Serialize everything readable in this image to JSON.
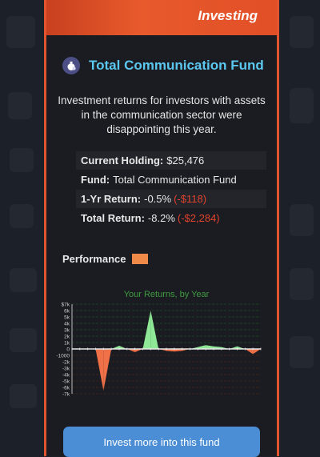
{
  "header": {
    "title": "Investing"
  },
  "fund": {
    "icon": "money-bag-icon",
    "title": "Total Communication Fund",
    "description": "Investment returns for investors with assets in the communication sector were disappointing this year."
  },
  "stats": {
    "holding_label": "Current Holding:",
    "holding_value": "$25,476",
    "fund_label": "Fund:",
    "fund_value": "Total Communication Fund",
    "one_yr_label": "1-Yr Return:",
    "one_yr_pct": "-0.5%",
    "one_yr_amount": "(-$118)",
    "total_label": "Total Return:",
    "total_pct": "-8.2%",
    "total_amount": "(-$2,284)"
  },
  "performance": {
    "label": "Performance",
    "swatch_color": "#f08a48"
  },
  "colors": {
    "accent": "#e2542d",
    "title": "#5cc8f0",
    "positive": "#8ee896",
    "negative": "#f07048",
    "button": "#4b8ed6"
  },
  "chart_data": {
    "type": "area",
    "title": "Your Returns, by Year",
    "ylim": [
      -7000,
      7000
    ],
    "y_ticks": [
      7000,
      6000,
      5000,
      4000,
      3000,
      2000,
      1000,
      0,
      -1000,
      -2000,
      -3000,
      -4000,
      -5000,
      -6000,
      -7000
    ],
    "y_tick_labels": [
      "$7k",
      "6k",
      "5k",
      "4k",
      "3k",
      "2k",
      "1k",
      "0",
      "-1000",
      "-2k",
      "-3k",
      "-4k",
      "-5k",
      "-6k",
      "-7k"
    ],
    "values": [
      0,
      0,
      0,
      0,
      -6500,
      0,
      500,
      0,
      -500,
      0,
      6000,
      0,
      -300,
      -400,
      -300,
      0,
      300,
      600,
      400,
      300,
      0,
      400,
      0,
      -800,
      0
    ]
  },
  "actions": {
    "invest_more": "Invest more into this fund"
  }
}
